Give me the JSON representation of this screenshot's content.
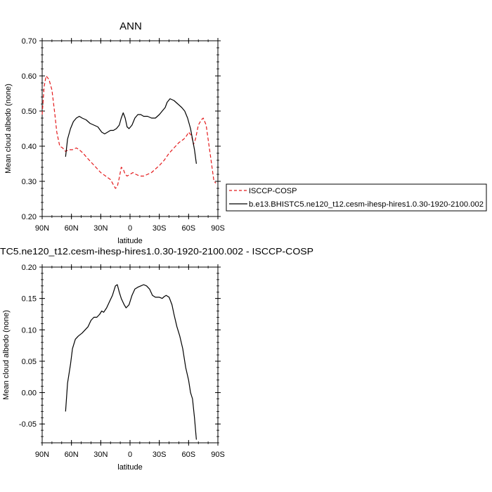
{
  "figure": {
    "title_top": "ANN",
    "title_bottom": "TC5.ne120_t12.cesm-ihesp-hires1.0.30-1920-2100.002 - ISCCP-COSP"
  },
  "chart_data": [
    {
      "type": "line",
      "title": "ANN",
      "xlabel": "latitude",
      "ylabel": "Mean cloud albedo (none)",
      "xlim": [
        -90,
        90
      ],
      "ylim": [
        0.2,
        0.7
      ],
      "x_direction": "north-to-south",
      "x_ticks": [
        {
          "value": -90,
          "label": "90N"
        },
        {
          "value": -60,
          "label": "60N"
        },
        {
          "value": -30,
          "label": "30N"
        },
        {
          "value": 0,
          "label": "0"
        },
        {
          "value": 30,
          "label": "30S"
        },
        {
          "value": 60,
          "label": "60S"
        },
        {
          "value": 90,
          "label": "90S"
        }
      ],
      "y_ticks": [
        {
          "value": 0.2,
          "label": "0.20"
        },
        {
          "value": 0.3,
          "label": "0.30"
        },
        {
          "value": 0.4,
          "label": "0.40"
        },
        {
          "value": 0.5,
          "label": "0.50"
        },
        {
          "value": 0.6,
          "label": "0.60"
        },
        {
          "value": 0.7,
          "label": "0.70"
        }
      ],
      "legend_position": "right",
      "series": [
        {
          "name": "ISCCP-COSP",
          "color": "#e41a1c",
          "dash": "dashed",
          "points": [
            [
              -90,
              0.49
            ],
            [
              -88,
              0.57
            ],
            [
              -86,
              0.6
            ],
            [
              -83,
              0.59
            ],
            [
              -80,
              0.56
            ],
            [
              -77,
              0.49
            ],
            [
              -75,
              0.44
            ],
            [
              -72,
              0.4
            ],
            [
              -69,
              0.395
            ],
            [
              -66,
              0.385
            ],
            [
              -63,
              0.39
            ],
            [
              -59,
              0.39
            ],
            [
              -55,
              0.395
            ],
            [
              -52,
              0.39
            ],
            [
              -48,
              0.38
            ],
            [
              -45,
              0.37
            ],
            [
              -40,
              0.355
            ],
            [
              -35,
              0.34
            ],
            [
              -30,
              0.325
            ],
            [
              -25,
              0.315
            ],
            [
              -20,
              0.305
            ],
            [
              -17,
              0.29
            ],
            [
              -15,
              0.28
            ],
            [
              -13,
              0.285
            ],
            [
              -11,
              0.31
            ],
            [
              -9,
              0.34
            ],
            [
              -7,
              0.335
            ],
            [
              -5,
              0.32
            ],
            [
              -3,
              0.315
            ],
            [
              0,
              0.32
            ],
            [
              3,
              0.325
            ],
            [
              6,
              0.32
            ],
            [
              10,
              0.315
            ],
            [
              14,
              0.315
            ],
            [
              18,
              0.32
            ],
            [
              22,
              0.325
            ],
            [
              26,
              0.335
            ],
            [
              30,
              0.345
            ],
            [
              35,
              0.36
            ],
            [
              40,
              0.38
            ],
            [
              45,
              0.395
            ],
            [
              50,
              0.41
            ],
            [
              55,
              0.42
            ],
            [
              58,
              0.43
            ],
            [
              60,
              0.44
            ],
            [
              63,
              0.43
            ],
            [
              65,
              0.405
            ],
            [
              67,
              0.42
            ],
            [
              70,
              0.46
            ],
            [
              73,
              0.475
            ],
            [
              75,
              0.48
            ],
            [
              78,
              0.46
            ],
            [
              80,
              0.42
            ],
            [
              83,
              0.36
            ],
            [
              86,
              0.3
            ],
            [
              88,
              0.295
            ]
          ]
        },
        {
          "name": "b.e13.BHISTC5.ne120_t12.cesm-ihesp-hires1.0.30-1920-2100.002",
          "color": "#000000",
          "dash": "solid",
          "points": [
            [
              -66,
              0.37
            ],
            [
              -64,
              0.42
            ],
            [
              -61,
              0.45
            ],
            [
              -58,
              0.47
            ],
            [
              -55,
              0.48
            ],
            [
              -52,
              0.485
            ],
            [
              -49,
              0.48
            ],
            [
              -45,
              0.475
            ],
            [
              -41,
              0.465
            ],
            [
              -37,
              0.46
            ],
            [
              -33,
              0.455
            ],
            [
              -29,
              0.44
            ],
            [
              -26,
              0.435
            ],
            [
              -23,
              0.44
            ],
            [
              -20,
              0.445
            ],
            [
              -17,
              0.445
            ],
            [
              -14,
              0.45
            ],
            [
              -11,
              0.46
            ],
            [
              -9,
              0.48
            ],
            [
              -7,
              0.495
            ],
            [
              -5,
              0.48
            ],
            [
              -3,
              0.455
            ],
            [
              -1,
              0.45
            ],
            [
              2,
              0.46
            ],
            [
              5,
              0.48
            ],
            [
              8,
              0.49
            ],
            [
              11,
              0.49
            ],
            [
              14,
              0.485
            ],
            [
              18,
              0.485
            ],
            [
              22,
              0.48
            ],
            [
              26,
              0.48
            ],
            [
              30,
              0.49
            ],
            [
              33,
              0.5
            ],
            [
              36,
              0.51
            ],
            [
              38,
              0.525
            ],
            [
              41,
              0.535
            ],
            [
              45,
              0.53
            ],
            [
              49,
              0.52
            ],
            [
              53,
              0.51
            ],
            [
              56,
              0.5
            ],
            [
              59,
              0.48
            ],
            [
              62,
              0.45
            ],
            [
              64,
              0.42
            ],
            [
              66,
              0.39
            ],
            [
              68,
              0.35
            ]
          ]
        }
      ]
    },
    {
      "type": "line",
      "title": "TC5.ne120_t12.cesm-ihesp-hires1.0.30-1920-2100.002 - ISCCP-COSP",
      "xlabel": "latitude",
      "ylabel": "Mean cloud albedo (none)",
      "xlim": [
        -90,
        90
      ],
      "ylim": [
        -0.08,
        0.2
      ],
      "x_direction": "north-to-south",
      "x_ticks": [
        {
          "value": -90,
          "label": "90N"
        },
        {
          "value": -60,
          "label": "60N"
        },
        {
          "value": -30,
          "label": "30N"
        },
        {
          "value": 0,
          "label": "0"
        },
        {
          "value": 30,
          "label": "30S"
        },
        {
          "value": 60,
          "label": "60S"
        },
        {
          "value": 90,
          "label": "90S"
        }
      ],
      "y_ticks": [
        {
          "value": -0.05,
          "label": "-0.05"
        },
        {
          "value": 0.0,
          "label": "0.00"
        },
        {
          "value": 0.05,
          "label": "0.05"
        },
        {
          "value": 0.1,
          "label": "0.10"
        },
        {
          "value": 0.15,
          "label": "0.15"
        },
        {
          "value": 0.2,
          "label": "0.20"
        }
      ],
      "series": [
        {
          "color": "#000000",
          "dash": "solid",
          "points": [
            [
              -66,
              -0.03
            ],
            [
              -64,
              0.015
            ],
            [
              -61,
              0.045
            ],
            [
              -59,
              0.07
            ],
            [
              -56,
              0.085
            ],
            [
              -53,
              0.09
            ],
            [
              -49,
              0.095
            ],
            [
              -46,
              0.1
            ],
            [
              -43,
              0.105
            ],
            [
              -40,
              0.115
            ],
            [
              -37,
              0.12
            ],
            [
              -34,
              0.12
            ],
            [
              -31,
              0.125
            ],
            [
              -29,
              0.13
            ],
            [
              -27,
              0.128
            ],
            [
              -24,
              0.135
            ],
            [
              -21,
              0.145
            ],
            [
              -18,
              0.155
            ],
            [
              -15,
              0.17
            ],
            [
              -13,
              0.172
            ],
            [
              -11,
              0.16
            ],
            [
              -9,
              0.15
            ],
            [
              -6,
              0.14
            ],
            [
              -4,
              0.135
            ],
            [
              -1,
              0.14
            ],
            [
              2,
              0.155
            ],
            [
              5,
              0.165
            ],
            [
              8,
              0.168
            ],
            [
              11,
              0.17
            ],
            [
              14,
              0.172
            ],
            [
              17,
              0.17
            ],
            [
              20,
              0.165
            ],
            [
              23,
              0.155
            ],
            [
              26,
              0.152
            ],
            [
              30,
              0.152
            ],
            [
              33,
              0.15
            ],
            [
              35,
              0.153
            ],
            [
              37,
              0.155
            ],
            [
              40,
              0.152
            ],
            [
              43,
              0.14
            ],
            [
              45,
              0.125
            ],
            [
              48,
              0.105
            ],
            [
              51,
              0.09
            ],
            [
              54,
              0.07
            ],
            [
              57,
              0.04
            ],
            [
              60,
              0.02
            ],
            [
              62,
              0.0
            ],
            [
              64,
              -0.01
            ],
            [
              66,
              -0.04
            ],
            [
              68,
              -0.075
            ]
          ]
        }
      ]
    }
  ]
}
